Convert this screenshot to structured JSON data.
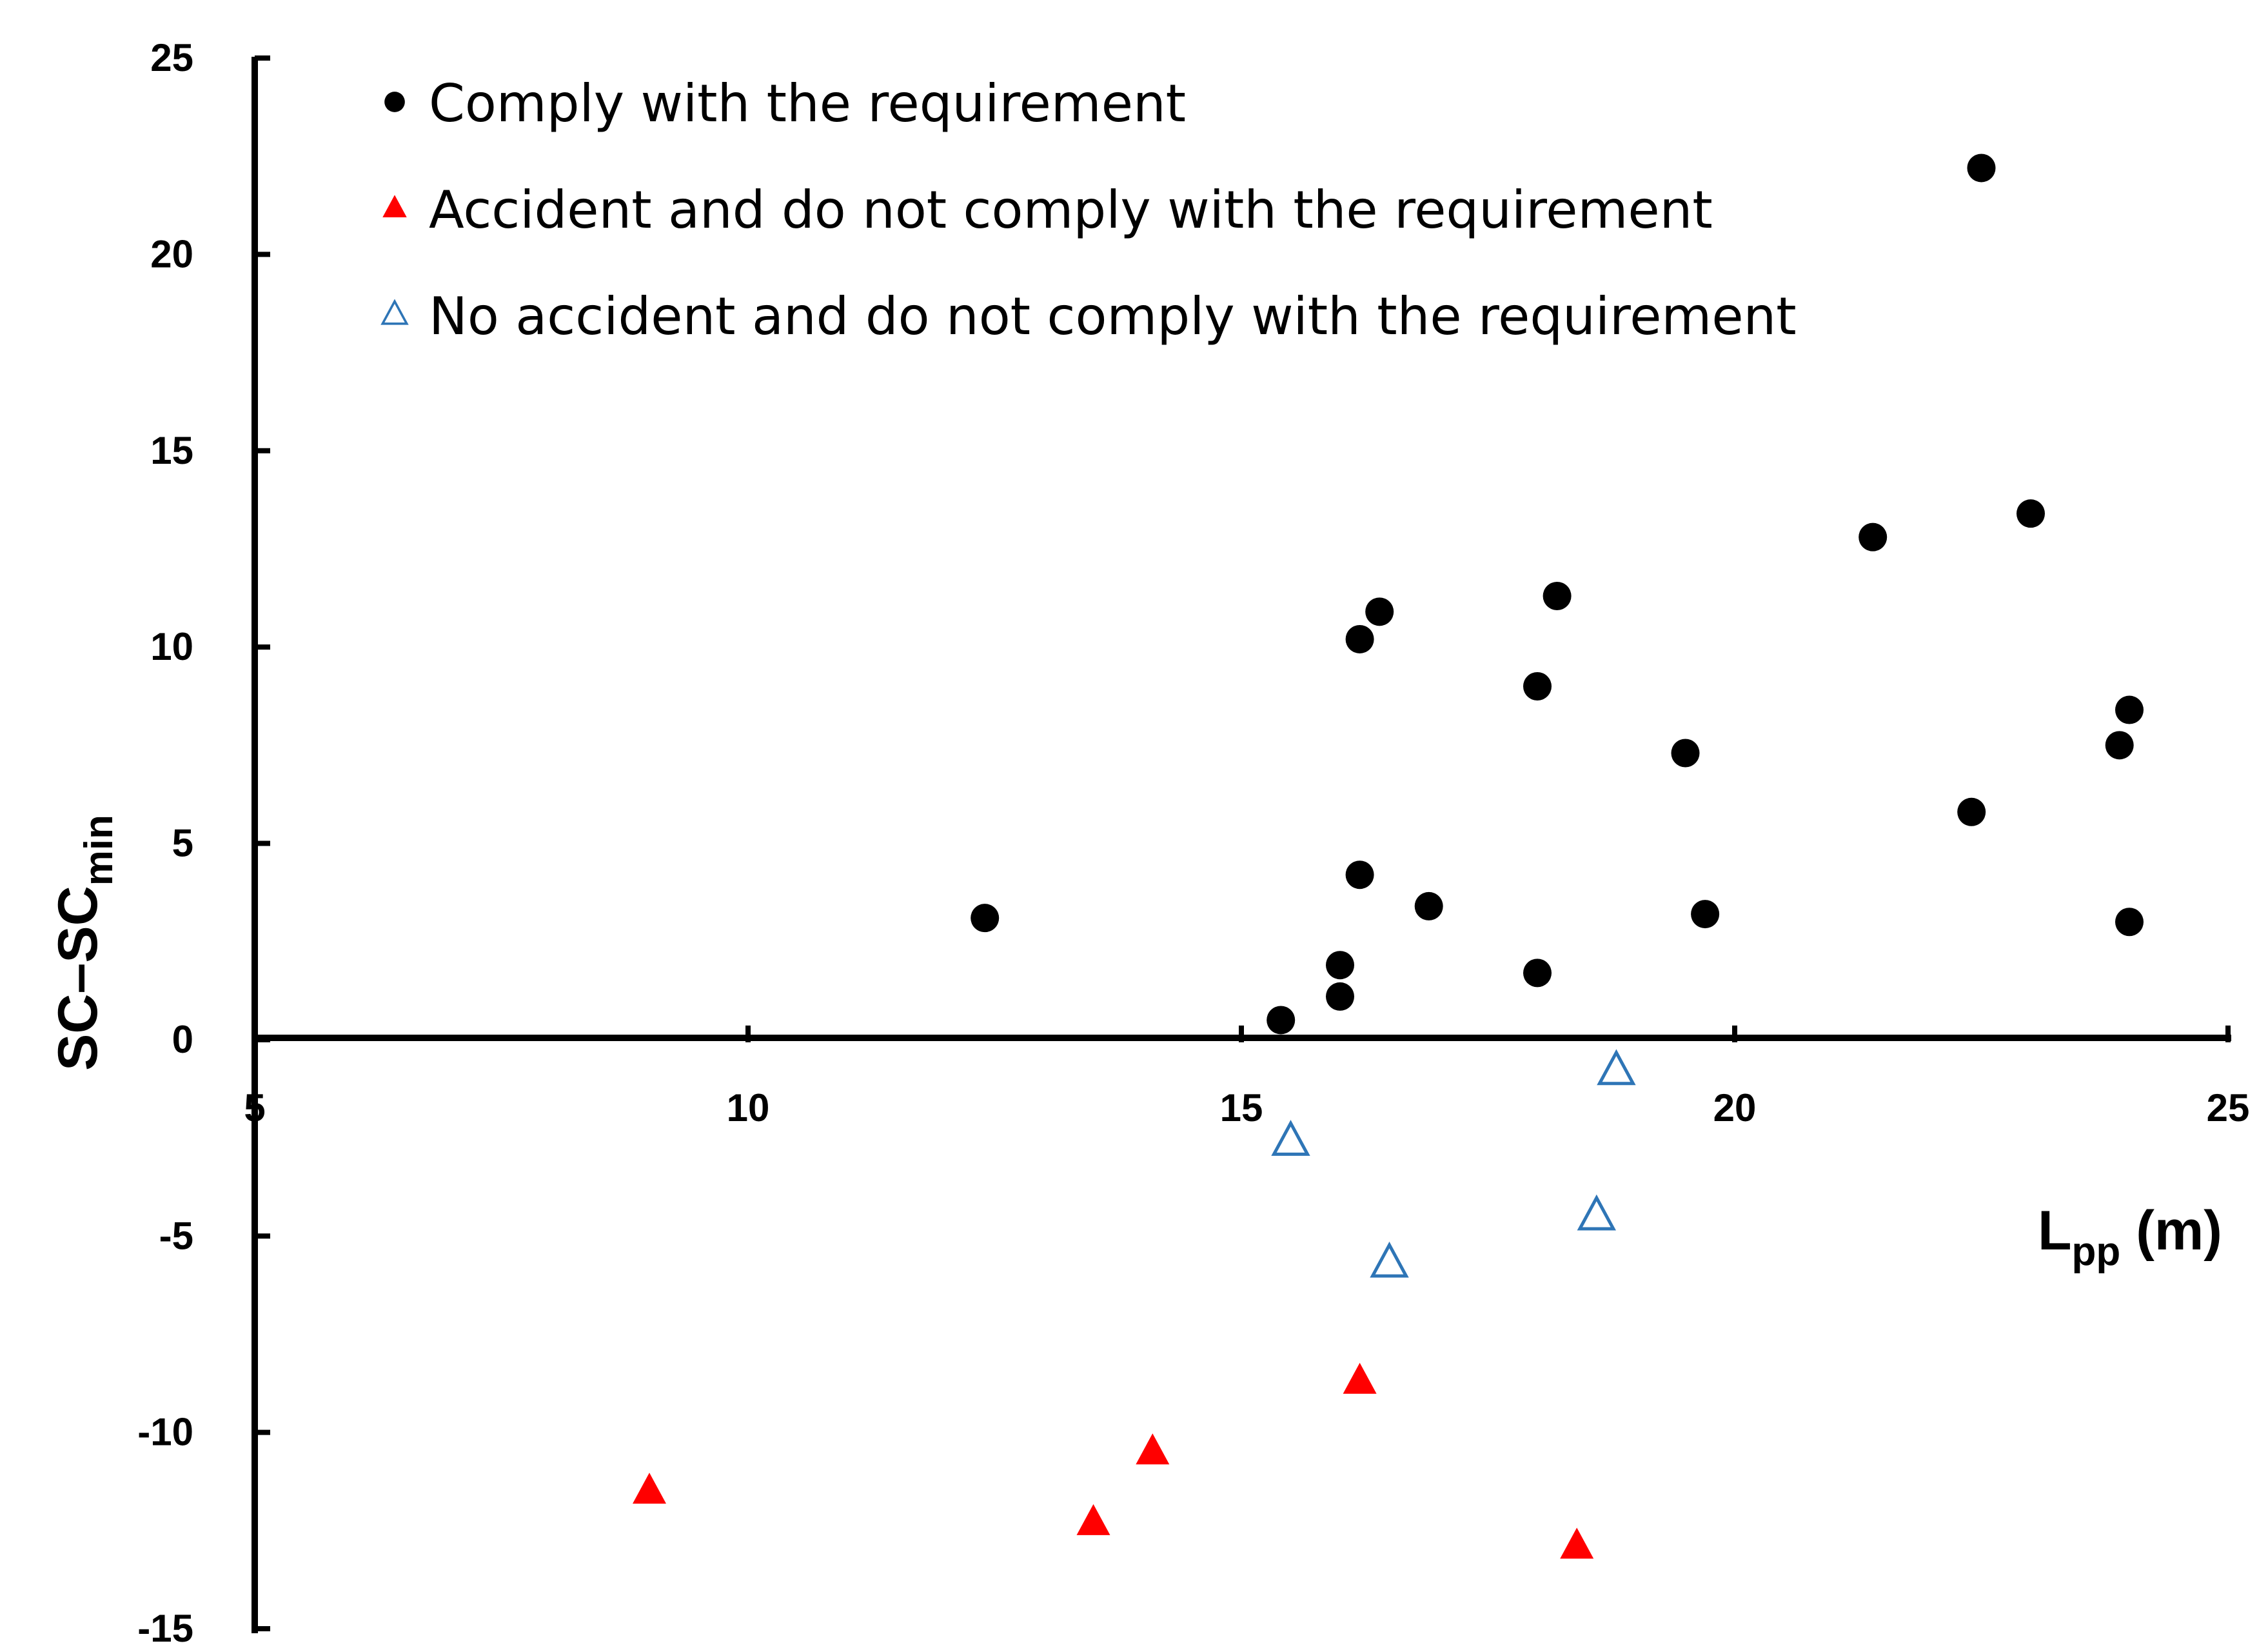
{
  "chart_data": {
    "type": "scatter",
    "xlabel": {
      "main": "L",
      "sub": "pp",
      "unit": " (m)"
    },
    "ylabel": {
      "main": "SC–SC",
      "sub": "min"
    },
    "xlim": [
      5,
      25
    ],
    "ylim": [
      -15,
      25
    ],
    "xticks": [
      "5",
      "10",
      "15",
      "20",
      "25"
    ],
    "yticks": [
      "25",
      "20",
      "15",
      "10",
      "5",
      "0",
      "-5",
      "-10",
      "-15"
    ],
    "grid": false,
    "legend_position": "top-left",
    "series": [
      {
        "name": "Comply with the requirement",
        "marker": "filled-circle",
        "color": "#000000",
        "points": [
          [
            12.4,
            3.1
          ],
          [
            15.4,
            0.5
          ],
          [
            16.0,
            1.1
          ],
          [
            16.0,
            1.9
          ],
          [
            16.2,
            10.2
          ],
          [
            16.2,
            4.2
          ],
          [
            16.4,
            10.9
          ],
          [
            16.9,
            3.4
          ],
          [
            18.0,
            9.0
          ],
          [
            18.0,
            1.7
          ],
          [
            18.2,
            11.3
          ],
          [
            19.5,
            7.3
          ],
          [
            19.7,
            3.2
          ],
          [
            21.4,
            12.8
          ],
          [
            22.4,
            5.8
          ],
          [
            22.5,
            22.2
          ],
          [
            23.0,
            13.4
          ],
          [
            23.9,
            7.5
          ],
          [
            24.0,
            8.4
          ],
          [
            24.0,
            3.0
          ]
        ]
      },
      {
        "name": "Accident and do not comply with the requirement",
        "marker": "filled-triangle",
        "color": "#ff0000",
        "points": [
          [
            9.0,
            -11.5
          ],
          [
            13.5,
            -12.3
          ],
          [
            14.1,
            -10.5
          ],
          [
            16.2,
            -8.7
          ],
          [
            18.4,
            -12.9
          ]
        ]
      },
      {
        "name": "No accident and do not comply with the requirement",
        "marker": "open-triangle",
        "color": "#2e75b6",
        "points": [
          [
            15.5,
            -2.6
          ],
          [
            16.5,
            -5.7
          ],
          [
            18.6,
            -4.5
          ],
          [
            18.8,
            -0.8
          ]
        ]
      }
    ]
  }
}
